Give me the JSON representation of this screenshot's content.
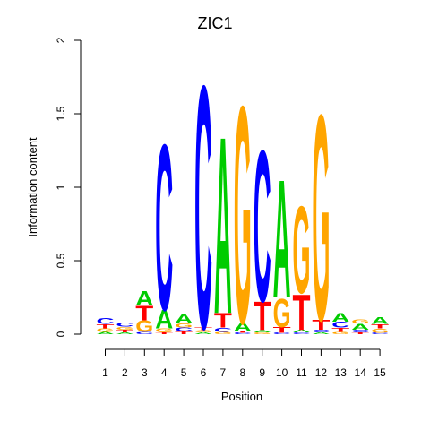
{
  "chart_data": {
    "type": "sequence-logo",
    "title": "ZIC1",
    "xlabel": "Position",
    "ylabel": "Information content",
    "ylim": [
      0,
      2
    ],
    "yticks": [
      "0",
      "0.5",
      "1",
      "1.5",
      "2"
    ],
    "yticks_values": [
      0,
      0.5,
      1,
      1.5,
      2
    ],
    "positions": [
      "1",
      "2",
      "3",
      "4",
      "5",
      "6",
      "7",
      "8",
      "9",
      "10",
      "11",
      "12",
      "13",
      "14",
      "15"
    ],
    "colors": {
      "A": "#00cc00",
      "C": "#0000ff",
      "G": "#ffa500",
      "T": "#ff0000"
    },
    "stacks": [
      [
        [
          "A",
          0.015
        ],
        [
          "G",
          0.025
        ],
        [
          "T",
          0.03
        ],
        [
          "C",
          0.04
        ]
      ],
      [
        [
          "A",
          0.012
        ],
        [
          "T",
          0.02
        ],
        [
          "G",
          0.02
        ],
        [
          "C",
          0.03
        ]
      ],
      [
        [
          "C",
          0.015
        ],
        [
          "G",
          0.08
        ],
        [
          "T",
          0.1
        ],
        [
          "A",
          0.1
        ]
      ],
      [
        [
          "T",
          0.012
        ],
        [
          "G",
          0.028
        ],
        [
          "A",
          0.13
        ],
        [
          "C",
          1.16
        ]
      ],
      [
        [
          "T",
          0.02
        ],
        [
          "C",
          0.025
        ],
        [
          "G",
          0.03
        ],
        [
          "A",
          0.06
        ]
      ],
      [
        [
          "A",
          0.012
        ],
        [
          "G",
          0.015
        ],
        [
          "T",
          0.02
        ],
        [
          "C",
          1.7
        ]
      ],
      [
        [
          "G",
          0.015
        ],
        [
          "C",
          0.03
        ],
        [
          "T",
          0.1
        ],
        [
          "A",
          1.24
        ]
      ],
      [
        [
          "C",
          0.01
        ],
        [
          "T",
          0.012
        ],
        [
          "A",
          0.06
        ],
        [
          "G",
          1.52
        ]
      ],
      [
        [
          "G",
          0.012
        ],
        [
          "A",
          0.015
        ],
        [
          "T",
          0.2
        ],
        [
          "C",
          1.06
        ]
      ],
      [
        [
          "C",
          0.01
        ],
        [
          "T",
          0.04
        ],
        [
          "G",
          0.2
        ],
        [
          "A",
          0.83
        ]
      ],
      [
        [
          "C",
          0.012
        ],
        [
          "A",
          0.02
        ],
        [
          "T",
          0.25
        ],
        [
          "G",
          0.61
        ]
      ],
      [
        [
          "A",
          0.012
        ],
        [
          "C",
          0.02
        ],
        [
          "T",
          0.07
        ],
        [
          "G",
          1.44
        ]
      ],
      [
        [
          "G",
          0.015
        ],
        [
          "T",
          0.03
        ],
        [
          "C",
          0.04
        ],
        [
          "A",
          0.06
        ]
      ],
      [
        [
          "T",
          0.012
        ],
        [
          "C",
          0.02
        ],
        [
          "A",
          0.04
        ],
        [
          "G",
          0.03
        ]
      ],
      [
        [
          "C",
          0.01
        ],
        [
          "G",
          0.03
        ],
        [
          "T",
          0.03
        ],
        [
          "A",
          0.05
        ]
      ]
    ]
  }
}
